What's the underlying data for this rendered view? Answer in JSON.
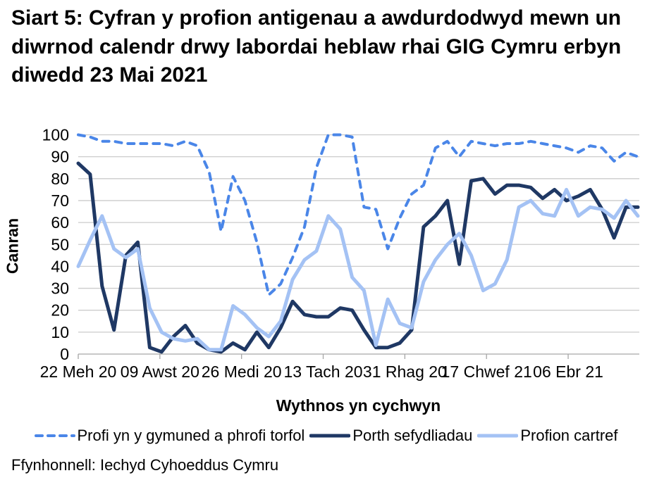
{
  "title": "Siart 5: Cyfran y profion antigenau a awdurdodwyd mewn un diwrnod calendr drwy labordai heblaw rhai GIG Cymru erbyn diwedd 23 Mai 2021",
  "footer": "Ffynhonnell: Iechyd Cyhoeddus Cymru",
  "colors": {
    "gridline": "#cccccc",
    "axis": "#a6a6a6",
    "text": "#000000"
  },
  "chart_data": {
    "type": "line",
    "title": "Siart 5: Cyfran y profion antigenau a awdurdodwyd mewn un diwrnod calendr drwy labordai heblaw rhai GIG Cymru erbyn diwedd 23 Mai 2021",
    "xlabel": "Wythnos yn cychwyn",
    "ylabel": "Canran",
    "ylim": [
      0,
      100
    ],
    "y_tick_step": 10,
    "y_tick_labels": [
      "0",
      "10",
      "20",
      "30",
      "40",
      "50",
      "60",
      "70",
      "80",
      "90",
      "100"
    ],
    "grid": true,
    "legend_position": "bottom",
    "n_points": 48,
    "x_tick_labels": [
      "22 Meh 20",
      "09 Awst 20",
      "26 Medi 20",
      "13 Tach 20",
      "31 Rhag 20",
      "17 Chwef 21",
      "06 Ebr 21"
    ],
    "x_tick_positions": [
      0,
      6.857,
      13.714,
      20.571,
      27.429,
      34.286,
      41.143
    ],
    "series": [
      {
        "name": "Profi yn y gymuned a phrofi torfol",
        "color": "#4a86e8",
        "style": "dashed",
        "stroke_width": 4,
        "values": [
          100,
          99,
          97,
          97,
          96,
          96,
          96,
          96,
          95,
          97,
          95,
          83,
          56,
          81,
          70,
          51,
          27,
          32,
          44,
          58,
          85,
          100,
          100,
          99,
          67,
          66,
          48,
          62,
          73,
          77,
          94,
          97,
          90,
          97,
          96,
          95,
          96,
          96,
          97,
          96,
          95,
          94,
          92,
          95,
          94,
          88,
          92,
          90
        ]
      },
      {
        "name": "Porth sefydliadau",
        "color": "#1f3864",
        "style": "solid",
        "stroke_width": 5,
        "values": [
          87,
          82,
          31,
          11,
          45,
          51,
          3,
          1,
          8,
          13,
          5,
          2,
          1,
          5,
          2,
          10,
          3,
          12,
          24,
          18,
          17,
          17,
          21,
          20,
          11,
          3,
          3,
          5,
          11,
          58,
          63,
          70,
          41,
          79,
          80,
          73,
          77,
          77,
          76,
          71,
          75,
          70,
          72,
          75,
          66,
          53,
          67,
          67
        ]
      },
      {
        "name": "Profion cartref",
        "color": "#a4c2f4",
        "style": "solid",
        "stroke_width": 5,
        "values": [
          40,
          52,
          63,
          48,
          44,
          48,
          21,
          10,
          7,
          6,
          7,
          2,
          2,
          22,
          18,
          12,
          8,
          15,
          34,
          43,
          47,
          63,
          57,
          35,
          29,
          4,
          25,
          14,
          12,
          33,
          43,
          50,
          55,
          45,
          29,
          32,
          43,
          67,
          70,
          64,
          63,
          75,
          63,
          67,
          66,
          62,
          70,
          63
        ]
      }
    ]
  }
}
